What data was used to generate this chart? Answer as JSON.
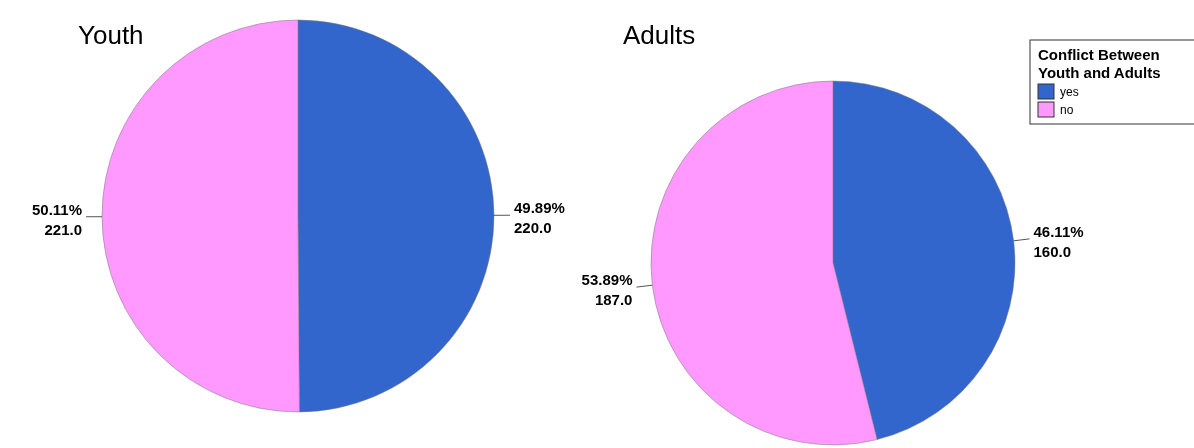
{
  "chart_data": [
    {
      "type": "pie",
      "title": "Youth",
      "categories": [
        null,
        null
      ],
      "values": [
        220.0,
        221.0
      ],
      "colors": [
        "#3366cc",
        "#ff99ff"
      ],
      "value_labels": [
        "49.89%\n220.0",
        "50.11%\n221.0"
      ],
      "legend": false
    },
    {
      "type": "pie",
      "title": "Adults",
      "categories": [
        "yes",
        "no"
      ],
      "values": [
        160.0,
        187.0
      ],
      "colors": [
        "#3366cc",
        "#ff99ff"
      ],
      "value_labels": [
        "46.11%\n160.0",
        "53.89%\n187.0"
      ],
      "legend": "top right",
      "legend_title": "Conflict Between\nYouth and Adults"
    }
  ]
}
